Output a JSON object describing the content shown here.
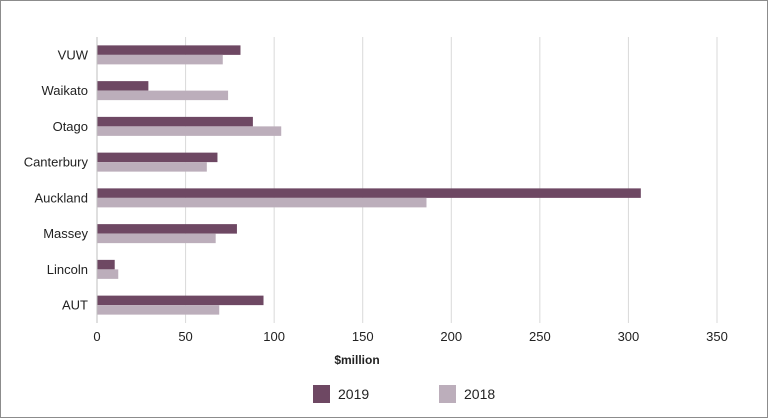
{
  "chart_data": {
    "type": "bar",
    "orientation": "horizontal",
    "title": "",
    "xlabel": "$million",
    "ylabel": "",
    "xlim": [
      0,
      350
    ],
    "xticks": [
      0,
      50,
      100,
      150,
      200,
      250,
      300,
      350
    ],
    "grid": "vertical",
    "legend_position": "bottom",
    "categories": [
      "VUW",
      "Waikato",
      "Otago",
      "Canterbury",
      "Auckland",
      "Massey",
      "Lincoln",
      "AUT"
    ],
    "series": [
      {
        "name": "2019",
        "color": "#6e4863",
        "values": [
          81,
          29,
          88,
          68,
          307,
          79,
          10,
          94
        ]
      },
      {
        "name": "2018",
        "color": "#bcaebb",
        "values": [
          71,
          74,
          104,
          62,
          186,
          67,
          12,
          69
        ]
      }
    ]
  }
}
